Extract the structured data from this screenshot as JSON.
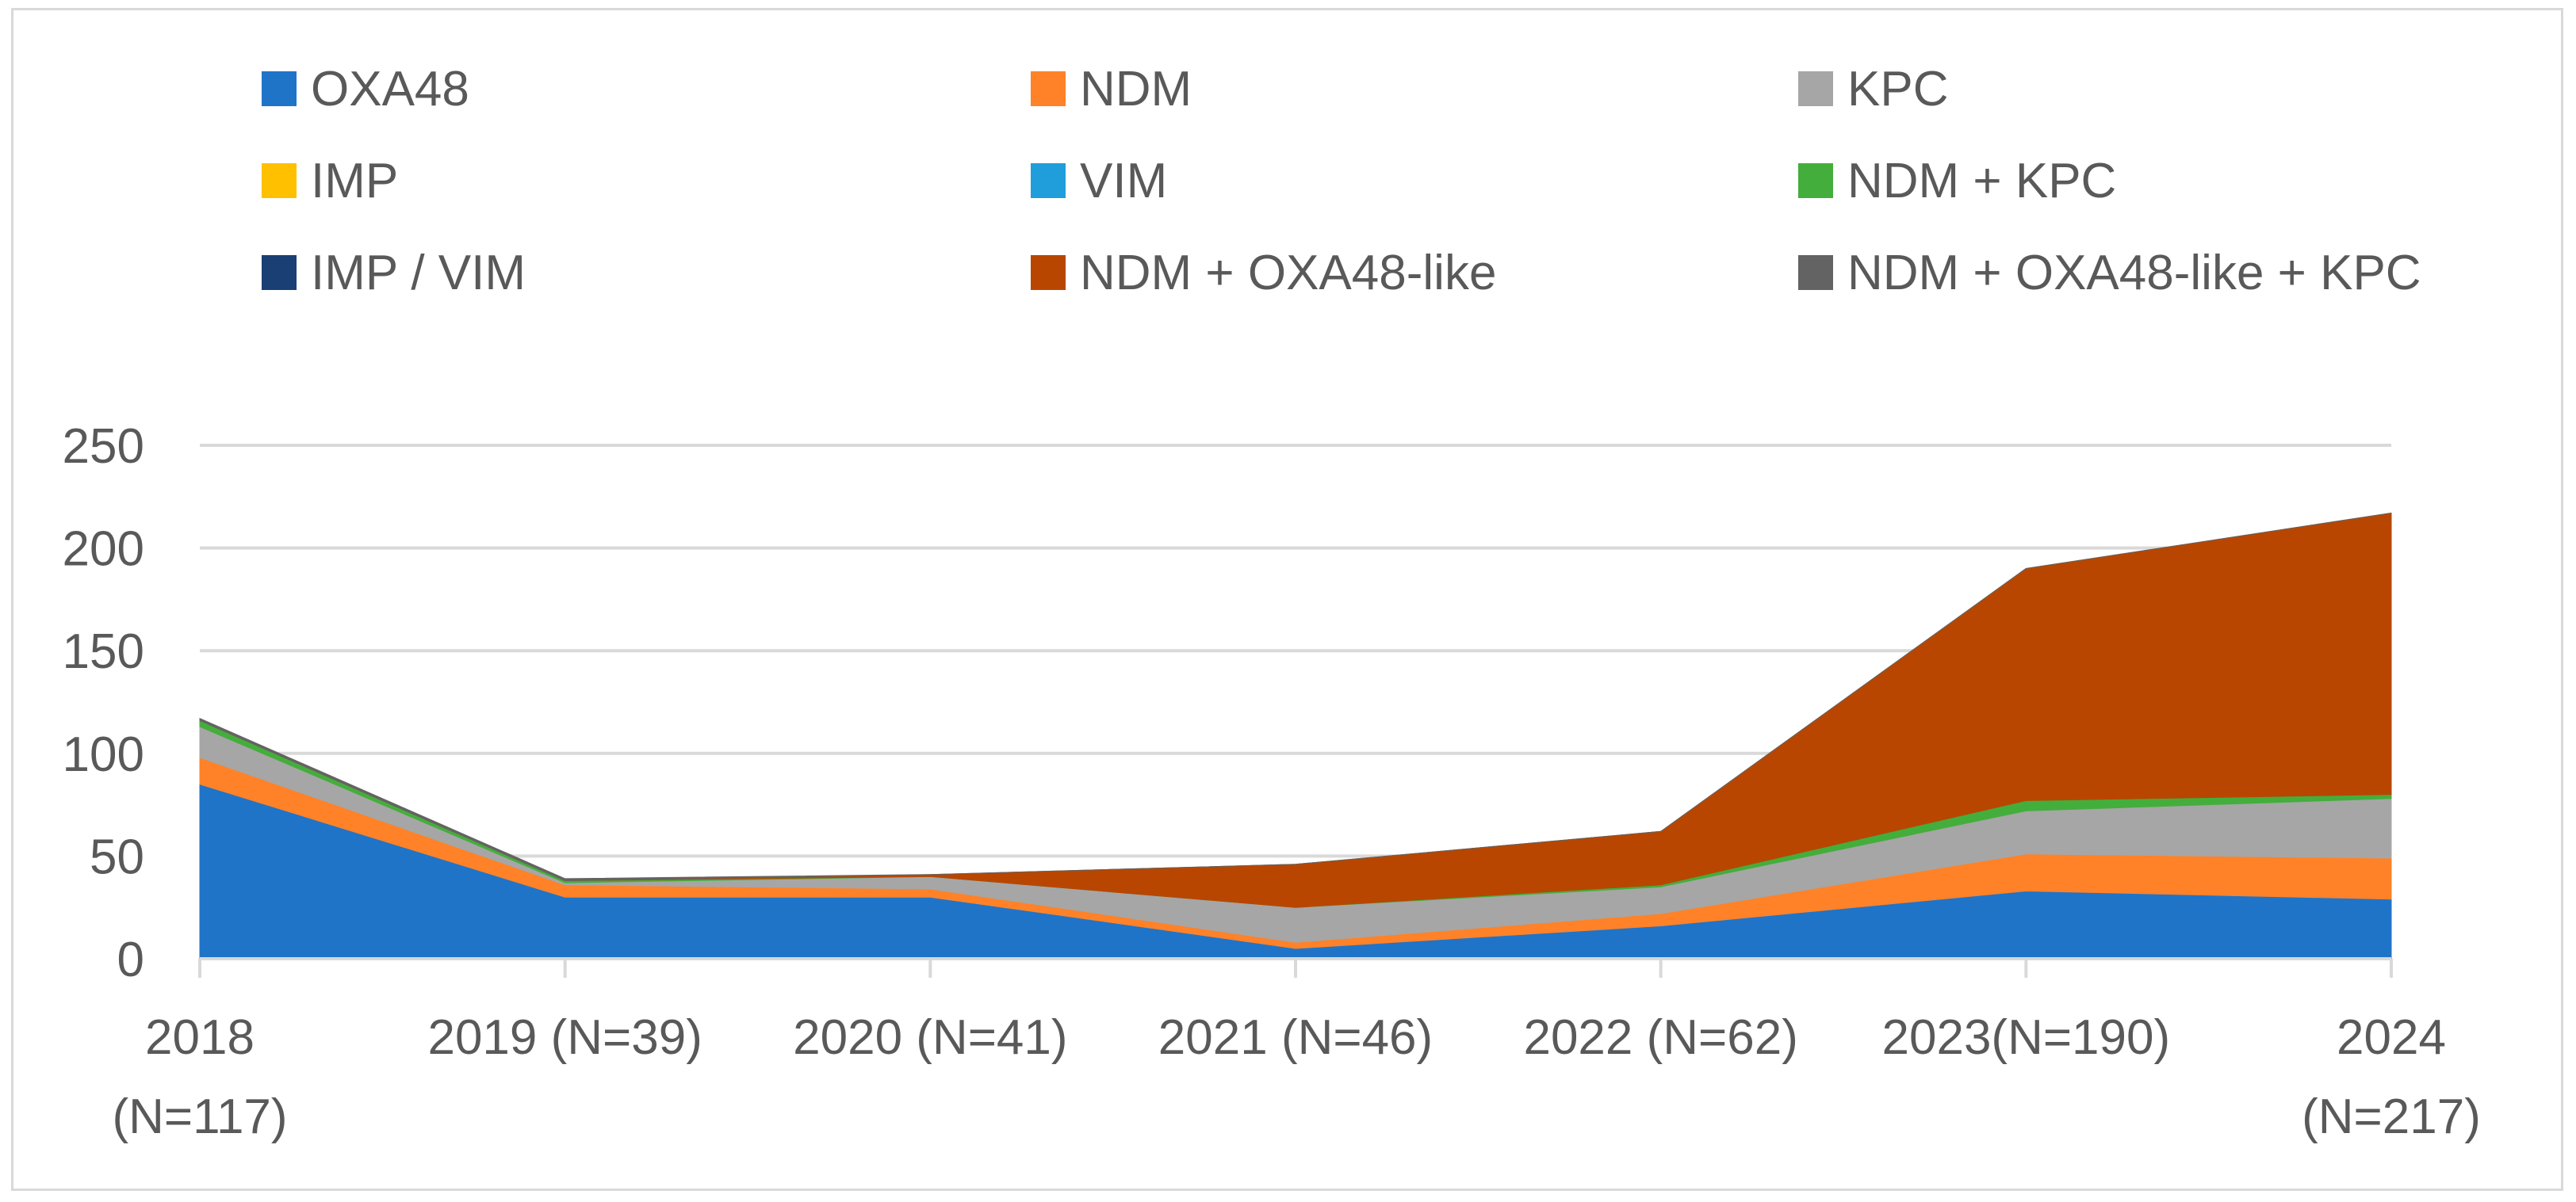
{
  "chart_data": {
    "type": "area",
    "stacked": true,
    "title": "",
    "xlabel": "",
    "ylabel": "",
    "x": [
      [
        "2018",
        "(N=117)"
      ],
      [
        "2019 (N=39)"
      ],
      [
        "2020 (N=41)"
      ],
      [
        "2021 (N=46)"
      ],
      [
        "2022 (N=62)"
      ],
      [
        "2023(N=190)"
      ],
      [
        "2024",
        "(N=217)"
      ]
    ],
    "yticks": [
      "0",
      "50",
      "100",
      "150",
      "200",
      "250"
    ],
    "ylim": [
      0,
      250
    ],
    "grid": true,
    "legend_position": "top",
    "series": [
      {
        "name": "OXA48",
        "color": "#1F74C8",
        "values": [
          85,
          30,
          30,
          5,
          16,
          33,
          29
        ]
      },
      {
        "name": "NDM",
        "color": "#FF8228",
        "values": [
          13,
          6,
          4,
          3,
          6,
          18,
          20
        ]
      },
      {
        "name": "KPC",
        "color": "#A6A6A6",
        "values": [
          15,
          1,
          6,
          17,
          13,
          21,
          29
        ]
      },
      {
        "name": "IMP",
        "color": "#FFC000",
        "values": [
          0,
          0,
          0,
          0,
          0,
          0,
          0
        ]
      },
      {
        "name": "VIM",
        "color": "#1F9EDB",
        "values": [
          0,
          0,
          0,
          0,
          0,
          0,
          0
        ]
      },
      {
        "name": "NDM + KPC",
        "color": "#44AE3C",
        "values": [
          3,
          1,
          0,
          0,
          1,
          5,
          2
        ]
      },
      {
        "name": "IMP / VIM",
        "color": "#1A3F74",
        "values": [
          0,
          0,
          0,
          0,
          0,
          0,
          0
        ]
      },
      {
        "name": "NDM + OXA48-like",
        "color": "#B84600",
        "values": [
          0,
          0,
          1,
          21,
          26,
          113,
          137
        ]
      },
      {
        "name": "NDM + OXA48-like + KPC",
        "color": "#636363",
        "values": [
          1,
          1,
          0,
          0,
          0,
          0,
          0
        ]
      }
    ]
  }
}
